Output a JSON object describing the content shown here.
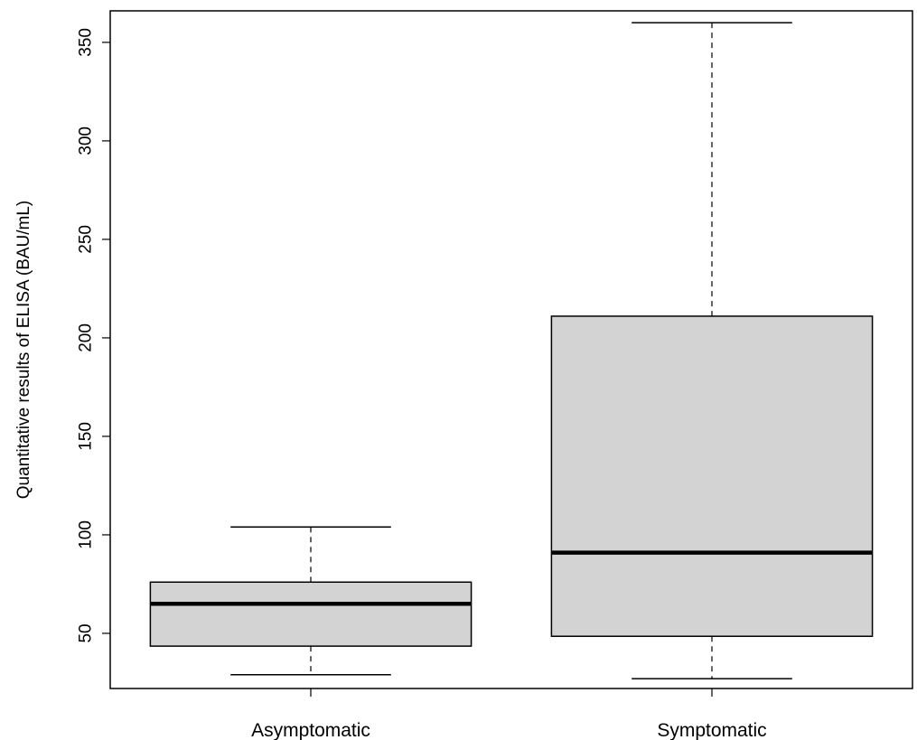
{
  "chart_data": {
    "type": "boxplot",
    "ylabel": "Quantitative results of ELISA (BAU/mL)",
    "xlabel": "",
    "categories": [
      "Asymptomatic",
      "Symptomatic"
    ],
    "y_ticks": [
      50,
      100,
      150,
      200,
      250,
      300,
      350
    ],
    "ylim": [
      22,
      366
    ],
    "boxes": [
      {
        "name": "Asymptomatic",
        "whisker_low": 29,
        "q1": 43.5,
        "median": 65,
        "q3": 76,
        "whisker_high": 104
      },
      {
        "name": "Symptomatic",
        "whisker_low": 27,
        "q1": 48.5,
        "median": 91,
        "q3": 211,
        "whisker_high": 360
      }
    ],
    "colors": {
      "box_fill": "#d3d3d3",
      "stroke": "#000000"
    },
    "grid": false,
    "legend": "none"
  }
}
